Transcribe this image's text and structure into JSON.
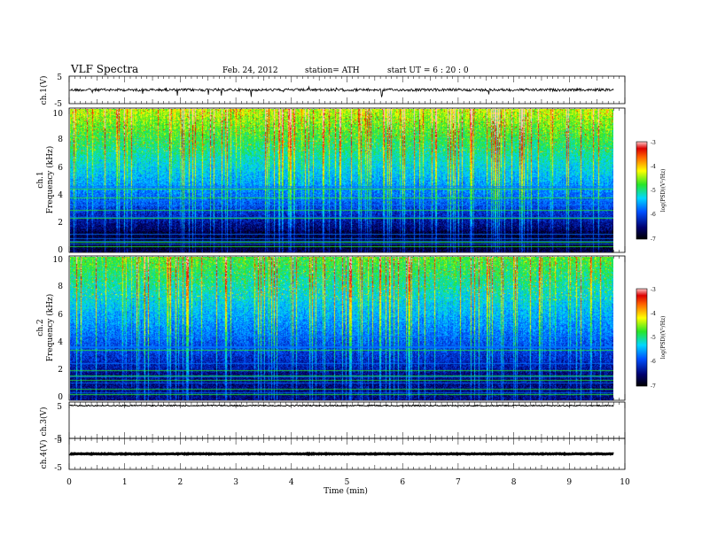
{
  "header": {
    "title": "VLF  Spectra",
    "date": "Feb. 24, 2012",
    "station": "station= ATH",
    "start": "start  UT  =    6  : 20 : 0"
  },
  "chart_data": [
    {
      "type": "line",
      "ylabel": "ch.1(V)",
      "ylim": [
        -5,
        5
      ],
      "y_ticks": [
        "5",
        "-5"
      ],
      "description_level": "noisy waveform near 0 V"
    },
    {
      "type": "heatmap",
      "ylabel_channel": "ch.1",
      "ylabel": "Frequency  (kHz)",
      "ylim": [
        0,
        10
      ],
      "y_ticks": [
        "10",
        "8",
        "6",
        "4",
        "2",
        "0"
      ],
      "colorbar": {
        "label": "log(PSD)(V²/Hz)",
        "ticks": [
          "-3",
          "-4",
          "-5",
          "-6",
          "-7"
        ],
        "range": [
          -7,
          -3
        ]
      }
    },
    {
      "type": "heatmap",
      "ylabel_channel": "ch.2",
      "ylabel": "Frequency  (kHz)",
      "ylim": [
        0,
        10
      ],
      "y_ticks": [
        "10",
        "8",
        "6",
        "4",
        "2",
        "0"
      ],
      "colorbar": {
        "label": "log(PSD)(V²/Hz)",
        "ticks": [
          "-3",
          "-4",
          "-5",
          "-6",
          "-7"
        ],
        "range": [
          -7,
          -3
        ]
      }
    },
    {
      "type": "line",
      "ylabel": "ch.3(V)",
      "ylim": [
        -5,
        5
      ],
      "y_ticks": [
        "5",
        "-5"
      ]
    },
    {
      "type": "line",
      "ylabel": "ch.4(V)",
      "ylim": [
        -5,
        5
      ],
      "y_ticks": [
        "5",
        "-5"
      ]
    }
  ],
  "x_axis": {
    "xlabel": "Time  (min)",
    "xlim": [
      0,
      10
    ],
    "ticks": [
      "0",
      "1",
      "2",
      "3",
      "4",
      "5",
      "6",
      "7",
      "8",
      "9",
      "10"
    ],
    "data_end": 9.8
  }
}
